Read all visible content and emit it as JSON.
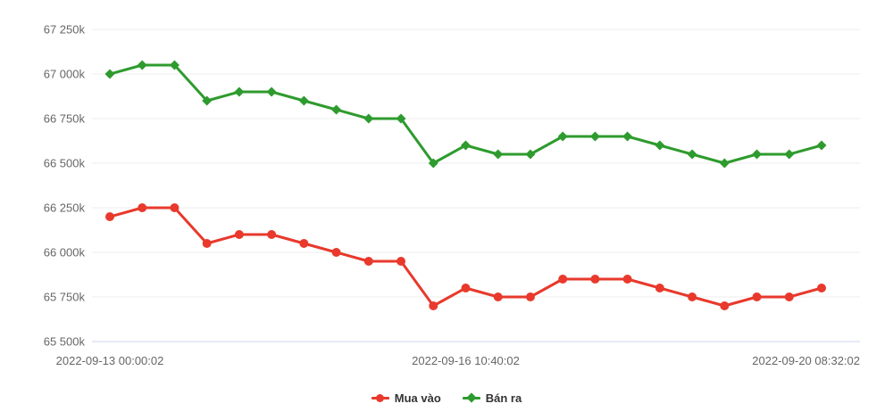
{
  "chart_data": {
    "type": "line",
    "title": "",
    "x_axis_labels": [
      {
        "label": "2022-09-13 00:00:02",
        "index": 0,
        "align": "center"
      },
      {
        "label": "2022-09-16 10:40:02",
        "index": 11,
        "align": "center"
      },
      {
        "label": "2022-09-20 08:32:02",
        "index": 22,
        "align": "right"
      }
    ],
    "y_ticks": [
      {
        "label": "67 250k",
        "value": 67250
      },
      {
        "label": "67 000k",
        "value": 67000
      },
      {
        "label": "66 750k",
        "value": 66750
      },
      {
        "label": "66 500k",
        "value": 66500
      },
      {
        "label": "66 250k",
        "value": 66250
      },
      {
        "label": "66 000k",
        "value": 66000
      },
      {
        "label": "65 750k",
        "value": 65750
      },
      {
        "label": "65 500k",
        "value": 65500
      }
    ],
    "ylim": [
      65500,
      67250
    ],
    "grid": true,
    "legend_position": "bottom-center",
    "series": [
      {
        "name": "Mua vào",
        "slug": "mua-vao",
        "color": "#e8392c",
        "marker": "circle",
        "values": [
          66200,
          66250,
          66250,
          66050,
          66100,
          66100,
          66050,
          66000,
          65950,
          65950,
          65700,
          65800,
          65750,
          65750,
          65850,
          65850,
          65850,
          65800,
          65750,
          65700,
          65750,
          65750,
          65800
        ]
      },
      {
        "name": "Bán ra",
        "slug": "ban-ra",
        "color": "#2e9b2e",
        "marker": "diamond",
        "values": [
          67000,
          67050,
          67050,
          66850,
          66900,
          66900,
          66850,
          66800,
          66750,
          66750,
          66500,
          66600,
          66550,
          66550,
          66650,
          66650,
          66650,
          66600,
          66550,
          66500,
          66550,
          66550,
          66600
        ]
      }
    ]
  },
  "styles": {
    "background": "#ffffff",
    "grid_color": "#ededed",
    "axis_line_color": "#ccd6eb",
    "tick_label_color": "#666666",
    "legend_text_color": "#333333"
  }
}
